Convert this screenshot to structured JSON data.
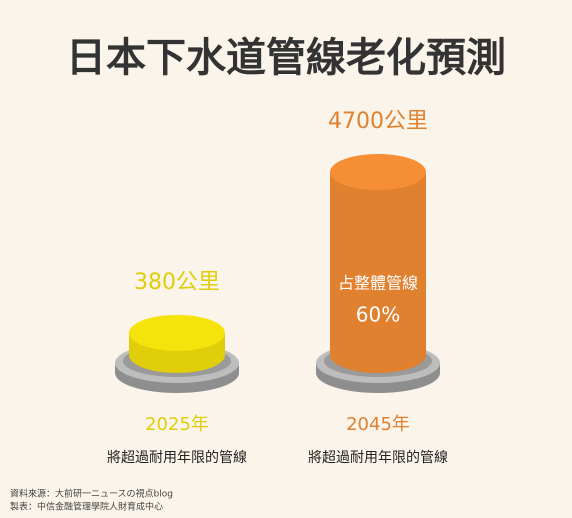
{
  "chart_data": {
    "type": "cylinder",
    "title": "日本下水道管線老化預測",
    "categories": [
      "2025年",
      "2045年"
    ],
    "category_notes": [
      "將超過耐用年限的管線",
      "將超過耐用年限的管線"
    ],
    "values": [
      380,
      4700
    ],
    "value_labels": [
      "380公里",
      "4700公里"
    ],
    "colors": [
      "#e0ce0a",
      "#e08130"
    ],
    "ylim": [
      0,
      4700
    ],
    "annotation": {
      "text": "占整體管線",
      "value": 60,
      "value_label": "60%"
    },
    "sources": [
      "資料來源：大前研一ニュースの視点blog",
      "製表：中信金融管理學院人財育成中心"
    ]
  }
}
